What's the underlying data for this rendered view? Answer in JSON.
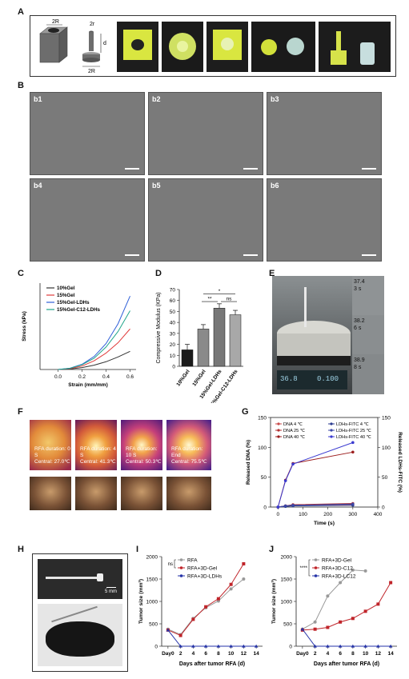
{
  "panels": {
    "A": "A",
    "B": "B",
    "C": "C",
    "D": "D",
    "E": "E",
    "F": "F",
    "G": "G",
    "H": "H",
    "I": "I",
    "J": "J"
  },
  "panelA": {
    "dim_2R_top": "2R",
    "dim_2r": "2r",
    "dim_d": "d",
    "dim_2R_bottom": "2R"
  },
  "panelB": {
    "tiles": [
      "b1",
      "b2",
      "b3",
      "b4",
      "b5",
      "b6"
    ]
  },
  "panelE": {
    "readings": [
      {
        "temp": "37.4",
        "time": "3 s"
      },
      {
        "temp": "38.2",
        "time": "6 s"
      },
      {
        "temp": "38.9",
        "time": "8 s"
      }
    ],
    "meter": "0.100",
    "meter_left": "36.8"
  },
  "panelF": {
    "captions": [
      {
        "line1": "RFA duration: 0 S",
        "line2": "Central: 27.0℃"
      },
      {
        "line1": "RFA duration: 4 S",
        "line2": "Central: 41.3℃"
      },
      {
        "line1": "RFA duration: 10 S",
        "line2": "Central: 50.3℃"
      },
      {
        "line1": "RFA duration:  End",
        "line2": "Central: 75.5℃"
      }
    ]
  },
  "panelH": {
    "scale": "5 mm"
  },
  "chart_data": [
    {
      "id": "C",
      "type": "line",
      "xlabel": "Strain (mm/mm)",
      "ylabel": "Stress (kPa)",
      "xticks": [
        "0.0",
        "0.2",
        "0.4",
        "0.6"
      ],
      "xlim": [
        -0.15,
        0.65
      ],
      "ylim": [
        0,
        100
      ],
      "series": [
        {
          "name": "10%Gel",
          "color": "#333333",
          "x": [
            0,
            0.1,
            0.2,
            0.3,
            0.4,
            0.5,
            0.6
          ],
          "y": [
            0,
            0.6,
            2.2,
            5,
            9,
            14.5,
            21
          ]
        },
        {
          "name": "15%Gel",
          "color": "#e03a3a",
          "x": [
            0,
            0.1,
            0.2,
            0.3,
            0.4,
            0.5,
            0.6
          ],
          "y": [
            0,
            1,
            4,
            10,
            19,
            31,
            47
          ]
        },
        {
          "name": "15%Gel-LDHs",
          "color": "#2f5fd8",
          "x": [
            0,
            0.1,
            0.2,
            0.3,
            0.4,
            0.5,
            0.6
          ],
          "y": [
            0,
            1.5,
            6,
            15,
            30,
            53,
            85
          ]
        },
        {
          "name": "15%Gel-C12-LDHs",
          "color": "#1fa58a",
          "x": [
            0,
            0.1,
            0.2,
            0.3,
            0.4,
            0.5,
            0.6
          ],
          "y": [
            0,
            1.4,
            5.5,
            13,
            26,
            44,
            68
          ]
        }
      ]
    },
    {
      "id": "D",
      "type": "bar",
      "ylabel": "Compressive Modulus (KPa)",
      "categories": [
        "10%Gel",
        "15%Gel",
        "15%Gel-LDHs",
        "15%Gel-C12-LDHs"
      ],
      "values": [
        15,
        34,
        53,
        47
      ],
      "errors": [
        5,
        4,
        4,
        4
      ],
      "colors": [
        "#1a1a1a",
        "#8a8a8a",
        "#777777",
        "#a8a8a8"
      ],
      "yticks": [
        "0",
        "10",
        "20",
        "30",
        "40",
        "50",
        "60",
        "70"
      ],
      "ylim": [
        0,
        70
      ],
      "significance": [
        "*",
        "**",
        "ns"
      ]
    },
    {
      "id": "G",
      "type": "line",
      "xlabel": "Time (s)",
      "ylabel": "Released DNA (%)",
      "y2label": "Released LDHs-FITC (%)",
      "xticks": [
        "0",
        "100",
        "200",
        "300",
        "400"
      ],
      "yticks": [
        "0",
        "50",
        "100",
        "150"
      ],
      "xlim": [
        -30,
        400
      ],
      "ylim": [
        0,
        150
      ],
      "series": [
        {
          "name": "DNA 4 ℃",
          "color": "#c94a4a",
          "x": [
            0,
            30,
            60,
            300
          ],
          "y": [
            0,
            2,
            3,
            4
          ]
        },
        {
          "name": "DNA 25 ℃",
          "color": "#b33030",
          "x": [
            0,
            30,
            60,
            300
          ],
          "y": [
            0,
            2,
            4,
            6
          ]
        },
        {
          "name": "DNA 40 ℃",
          "color": "#9b1b1b",
          "x": [
            0,
            30,
            60,
            300
          ],
          "y": [
            0,
            45,
            73,
            92
          ]
        },
        {
          "name": "LDHs-FITC 4 ℃",
          "color": "#2a3a8f",
          "x": [
            0,
            30,
            60,
            300
          ],
          "y": [
            0,
            1,
            2,
            3
          ]
        },
        {
          "name": "LDHs-FITC 25 ℃",
          "color": "#3b47a8",
          "x": [
            0,
            30,
            60,
            300
          ],
          "y": [
            0,
            2,
            3,
            5
          ]
        },
        {
          "name": "LDHs-FITC 40 ℃",
          "color": "#3a3ad0",
          "x": [
            0,
            30,
            60,
            300
          ],
          "y": [
            0,
            44,
            72,
            108
          ]
        }
      ]
    },
    {
      "id": "I",
      "type": "line",
      "xlabel": "Days after tumor RFA (d)",
      "ylabel": "Tumor size (mm³)",
      "xticks": [
        "Day0",
        "2",
        "4",
        "6",
        "8",
        "10",
        "12",
        "14"
      ],
      "yticks": [
        "0",
        "500",
        "1000",
        "1500",
        "2000"
      ],
      "xlim": [
        -1,
        15
      ],
      "ylim": [
        0,
        2000
      ],
      "series": [
        {
          "name": "RFA",
          "color": "#999999",
          "x": [
            0,
            2,
            4,
            6,
            8,
            10,
            12
          ],
          "y": [
            380,
            260,
            620,
            860,
            1010,
            1280,
            1500
          ]
        },
        {
          "name": "RFA+3D-Gel",
          "color": "#c0242a",
          "x": [
            0,
            2,
            4,
            6,
            8,
            10,
            12
          ],
          "y": [
            360,
            240,
            600,
            880,
            1060,
            1380,
            1840
          ]
        },
        {
          "name": "RFA+3D-LDHs",
          "color": "#2533a8",
          "x": [
            0,
            2,
            4,
            6,
            8,
            10,
            12,
            14
          ],
          "y": [
            360,
            0,
            0,
            0,
            0,
            0,
            0,
            0
          ]
        }
      ],
      "significance": [
        "ns"
      ]
    },
    {
      "id": "J",
      "type": "line",
      "xlabel": "Days after tumor RFA (d)",
      "ylabel": "Tumor size (mm³)",
      "xticks": [
        "Day0",
        "2",
        "4",
        "6",
        "8",
        "10",
        "12",
        "14"
      ],
      "yticks": [
        "0",
        "500",
        "1000",
        "1500",
        "2000"
      ],
      "xlim": [
        -1,
        15
      ],
      "ylim": [
        0,
        2000
      ],
      "series": [
        {
          "name": "RFA+3D-Gel",
          "color": "#999999",
          "x": [
            0,
            2,
            4,
            6,
            8,
            10
          ],
          "y": [
            380,
            540,
            1120,
            1420,
            1700,
            1680
          ]
        },
        {
          "name": "RFA+3D-C12",
          "color": "#c0242a",
          "x": [
            0,
            2,
            4,
            6,
            8,
            10,
            12,
            14
          ],
          "y": [
            360,
            380,
            420,
            540,
            620,
            780,
            940,
            1420
          ]
        },
        {
          "name": "RFA+3D-LC12",
          "color": "#2533a8",
          "x": [
            0,
            2,
            4,
            6,
            8,
            10,
            12,
            14
          ],
          "y": [
            380,
            0,
            0,
            0,
            0,
            0,
            0,
            0
          ]
        }
      ],
      "significance": [
        "****"
      ]
    }
  ]
}
